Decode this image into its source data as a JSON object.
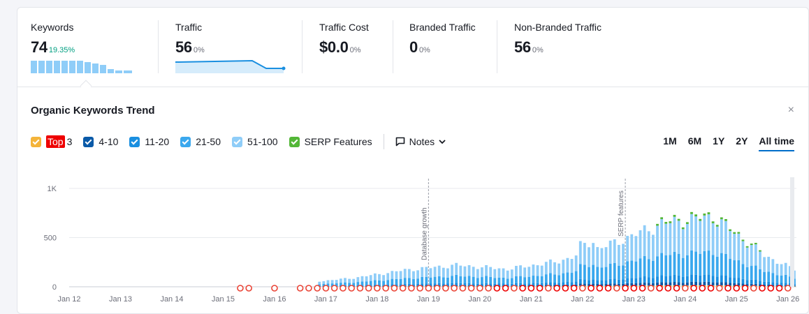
{
  "metrics": [
    {
      "label": "Keywords",
      "value": "74",
      "pct": "19.35%"
    },
    {
      "label": "Traffic",
      "value": "56",
      "pct": "0%"
    },
    {
      "label": "Traffic Cost",
      "value": "$0.0",
      "pct": "0%"
    },
    {
      "label": "Branded Traffic",
      "value": "0",
      "pct": "0%"
    },
    {
      "label": "Non-Branded Traffic",
      "value": "56",
      "pct": "0%"
    }
  ],
  "trend": {
    "title": "Organic Keywords Trend",
    "close_icon": "×",
    "legend": {
      "top_badge": "Top",
      "top_suffix": "3",
      "r4_10": "4-10",
      "r11_20": "11-20",
      "r21_50": "21-50",
      "r51_100": "51-100",
      "serp": "SERP Features",
      "notes": "Notes"
    },
    "ranges": [
      "1M",
      "6M",
      "1Y",
      "2Y",
      "All time"
    ],
    "active_range": "All time"
  },
  "colors": {
    "top3": "#f4b43a",
    "r4_10": "#0a5aa8",
    "r11_20": "#1a8fe0",
    "r21_50": "#3aa8ee",
    "r51_100": "#8fcdf8",
    "serp": "#53b737",
    "accent": "#006dca"
  },
  "chart_data": {
    "type": "bar",
    "stacked": true,
    "ylim": [
      0,
      1000
    ],
    "yticks": [
      "0",
      "500",
      "1K"
    ],
    "xticks": [
      "Jan 12",
      "Jan 13",
      "Jan 14",
      "Jan 15",
      "Jan 16",
      "Jan 17",
      "Jan 18",
      "Jan 19",
      "Jan 20",
      "Jan 21",
      "Jan 22",
      "Jan 23",
      "Jan 24",
      "Jan 25",
      "Jan 26"
    ],
    "xrange": [
      "2012-01",
      "2026-03"
    ],
    "annotations": [
      {
        "label": "Database growth",
        "x": "2019-01"
      },
      {
        "label": "SERP features",
        "x": "2022-11"
      }
    ],
    "series": [
      {
        "name": "Top 3",
        "color": "#f4b43a"
      },
      {
        "name": "4-10",
        "color": "#0a5aa8"
      },
      {
        "name": "11-20",
        "color": "#1a8fe0"
      },
      {
        "name": "21-50",
        "color": "#3aa8ee"
      },
      {
        "name": "51-100",
        "color": "#8fcdf8"
      },
      {
        "name": "SERP Features",
        "color": "#53b737"
      }
    ],
    "totals_by_year": [
      {
        "year": "2016",
        "total": 40
      },
      {
        "year": "2017",
        "total": 90
      },
      {
        "year": "2018",
        "total": 170
      },
      {
        "year": "2019",
        "total": 220
      },
      {
        "year": "2020",
        "total": 180
      },
      {
        "year": "2021",
        "total": 260
      },
      {
        "year": "2022",
        "total": 430
      },
      {
        "year": "2023",
        "total": 640
      },
      {
        "year": "2024",
        "total": 710
      },
      {
        "year": "2025",
        "total": 320
      },
      {
        "year": "2026",
        "total": 74
      }
    ]
  }
}
